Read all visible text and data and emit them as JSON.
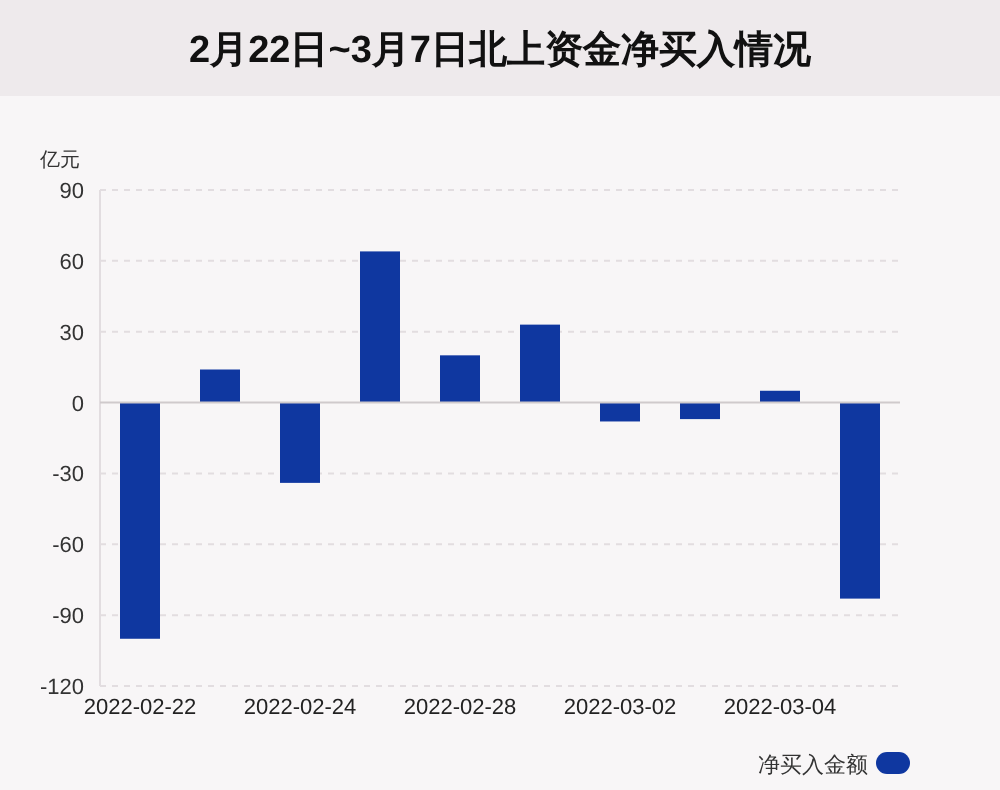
{
  "chart_data": {
    "type": "bar",
    "title": "2月22日~3月7日北上资金净买入情况",
    "ylabel": "亿元",
    "categories": [
      "2022-02-22",
      null,
      "2022-02-24",
      null,
      "2022-02-28",
      null,
      "2022-03-02",
      null,
      "2022-03-04",
      null
    ],
    "series": [
      {
        "name": "净买入金额",
        "color": "#0f37a0",
        "values": [
          -100,
          14,
          -34,
          64,
          20,
          33,
          -8,
          -7,
          5,
          -83
        ]
      }
    ],
    "ylim": [
      -120,
      90
    ],
    "yticks": [
      -120,
      -90,
      -60,
      -30,
      0,
      30,
      60,
      90
    ],
    "grid": "y",
    "legend": "bottom right"
  }
}
